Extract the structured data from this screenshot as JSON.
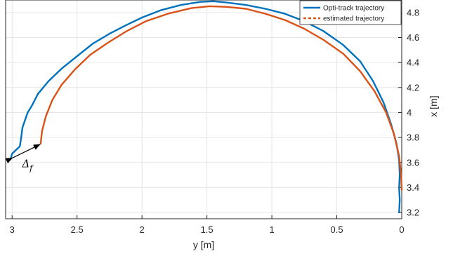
{
  "chart_data": {
    "type": "line",
    "title": "",
    "xlabel": "y [m]",
    "ylabel": "x [m]",
    "xlim": [
      0,
      3.05
    ],
    "x_reversed": true,
    "ylim": [
      3.15,
      4.9
    ],
    "y_axis_side": "right",
    "grid": true,
    "legend_position": "top-right",
    "xticks": [
      0,
      0.5,
      1,
      1.5,
      2,
      2.5,
      3
    ],
    "xtick_labels": [
      "0",
      "0.5",
      "1",
      "1.5",
      "2",
      "2.5",
      "3"
    ],
    "yticks": [
      3.2,
      3.4,
      3.6,
      3.8,
      4.0,
      4.2,
      4.4,
      4.6,
      4.8
    ],
    "ytick_labels": [
      "3.2",
      "3.4",
      "3.6",
      "3.8",
      "4",
      "4.2",
      "4.4",
      "4.6",
      "4.8"
    ],
    "series": [
      {
        "name": "Opti-track trajectory",
        "style": "solid",
        "color": "#0072BD",
        "points": [
          [
            3.01,
            3.63
          ],
          [
            3.0,
            3.67
          ],
          [
            2.97,
            3.7
          ],
          [
            2.94,
            3.73
          ],
          [
            2.93,
            3.8
          ],
          [
            2.92,
            3.88
          ],
          [
            2.9,
            3.94
          ],
          [
            2.88,
            4.0
          ],
          [
            2.85,
            4.05
          ],
          [
            2.8,
            4.15
          ],
          [
            2.72,
            4.25
          ],
          [
            2.62,
            4.35
          ],
          [
            2.5,
            4.45
          ],
          [
            2.38,
            4.55
          ],
          [
            2.25,
            4.63
          ],
          [
            2.12,
            4.7
          ],
          [
            2.0,
            4.76
          ],
          [
            1.85,
            4.82
          ],
          [
            1.7,
            4.86
          ],
          [
            1.55,
            4.885
          ],
          [
            1.45,
            4.89
          ],
          [
            1.35,
            4.88
          ],
          [
            1.2,
            4.86
          ],
          [
            1.05,
            4.83
          ],
          [
            0.9,
            4.79
          ],
          [
            0.75,
            4.73
          ],
          [
            0.6,
            4.65
          ],
          [
            0.45,
            4.54
          ],
          [
            0.32,
            4.41
          ],
          [
            0.22,
            4.25
          ],
          [
            0.14,
            4.08
          ],
          [
            0.08,
            3.9
          ],
          [
            0.04,
            3.75
          ],
          [
            0.02,
            3.62
          ],
          [
            0.015,
            3.5
          ],
          [
            0.02,
            3.4
          ],
          [
            0.015,
            3.3
          ],
          [
            0.02,
            3.2
          ]
        ]
      },
      {
        "name": "estimated trajectory",
        "style": "dashed",
        "color": "#D95319",
        "points": [
          [
            2.78,
            3.75
          ],
          [
            2.77,
            3.85
          ],
          [
            2.74,
            3.97
          ],
          [
            2.69,
            4.1
          ],
          [
            2.62,
            4.22
          ],
          [
            2.52,
            4.34
          ],
          [
            2.4,
            4.46
          ],
          [
            2.26,
            4.56
          ],
          [
            2.12,
            4.65
          ],
          [
            1.97,
            4.73
          ],
          [
            1.8,
            4.79
          ],
          [
            1.62,
            4.835
          ],
          [
            1.48,
            4.85
          ],
          [
            1.35,
            4.845
          ],
          [
            1.2,
            4.83
          ],
          [
            1.05,
            4.79
          ],
          [
            0.9,
            4.74
          ],
          [
            0.75,
            4.67
          ],
          [
            0.6,
            4.58
          ],
          [
            0.45,
            4.47
          ],
          [
            0.32,
            4.33
          ],
          [
            0.21,
            4.17
          ],
          [
            0.12,
            4.0
          ],
          [
            0.06,
            3.83
          ],
          [
            0.02,
            3.65
          ],
          [
            0.005,
            3.5
          ],
          [
            0.0,
            3.38
          ]
        ]
      }
    ],
    "annotations": [
      {
        "text": "Δ",
        "subscript": "f",
        "arrow_from": [
          3.01,
          3.63
        ],
        "arrow_to": [
          2.78,
          3.75
        ]
      }
    ]
  }
}
